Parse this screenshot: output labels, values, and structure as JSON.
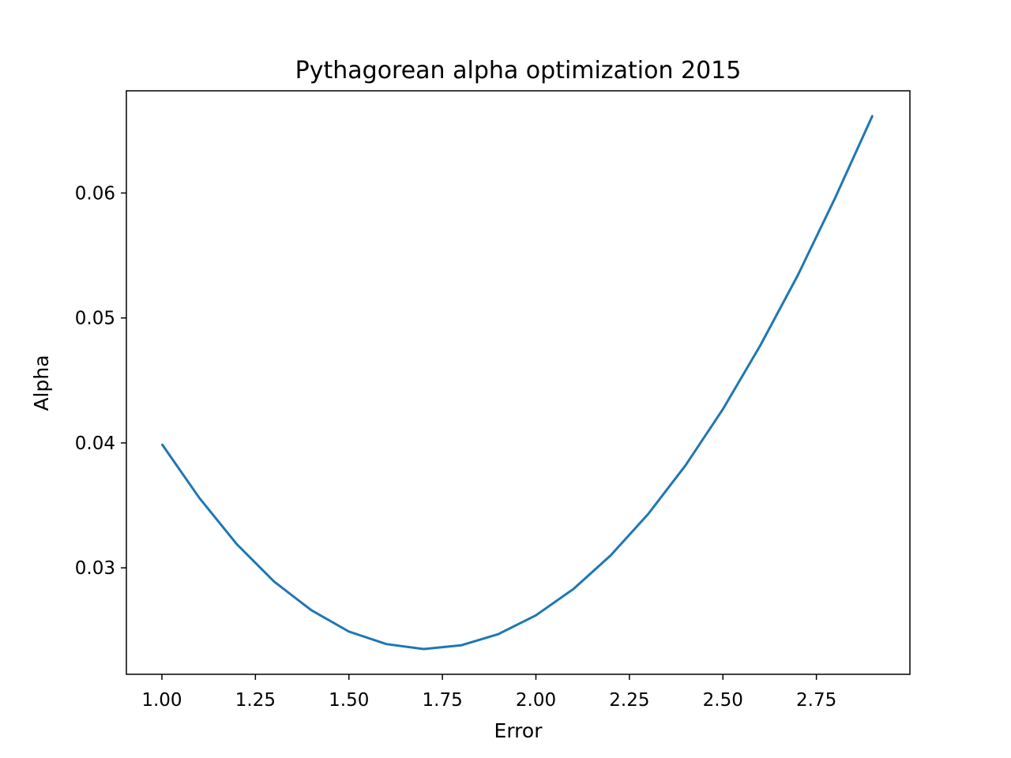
{
  "chart_data": {
    "type": "line",
    "title": "Pythagorean alpha optimization 2015",
    "xlabel": "Error",
    "ylabel": "Alpha",
    "xlim": [
      0.905,
      3.0
    ],
    "ylim": [
      0.02148,
      0.06818
    ],
    "xticks": [
      1.0,
      1.25,
      1.5,
      1.75,
      2.0,
      2.25,
      2.5,
      2.75
    ],
    "xtick_labels": [
      "1.00",
      "1.25",
      "1.50",
      "1.75",
      "2.00",
      "2.25",
      "2.50",
      "2.75"
    ],
    "yticks": [
      0.03,
      0.04,
      0.05,
      0.06
    ],
    "ytick_labels": [
      "0.03",
      "0.04",
      "0.05",
      "0.06"
    ],
    "grid": false,
    "series": [
      {
        "color": "#1f77b4",
        "x": [
          1.0,
          1.1,
          1.2,
          1.3,
          1.4,
          1.5,
          1.6,
          1.7,
          1.8,
          1.9,
          2.0,
          2.1,
          2.2,
          2.3,
          2.4,
          2.5,
          2.6,
          2.7,
          2.8,
          2.9
        ],
        "y": [
          0.0399,
          0.0356,
          0.0319,
          0.0289,
          0.0266,
          0.0249,
          0.0239,
          0.0235,
          0.0238,
          0.0247,
          0.0262,
          0.0283,
          0.031,
          0.0343,
          0.0382,
          0.0427,
          0.0478,
          0.0534,
          0.0596,
          0.0662
        ]
      }
    ]
  }
}
